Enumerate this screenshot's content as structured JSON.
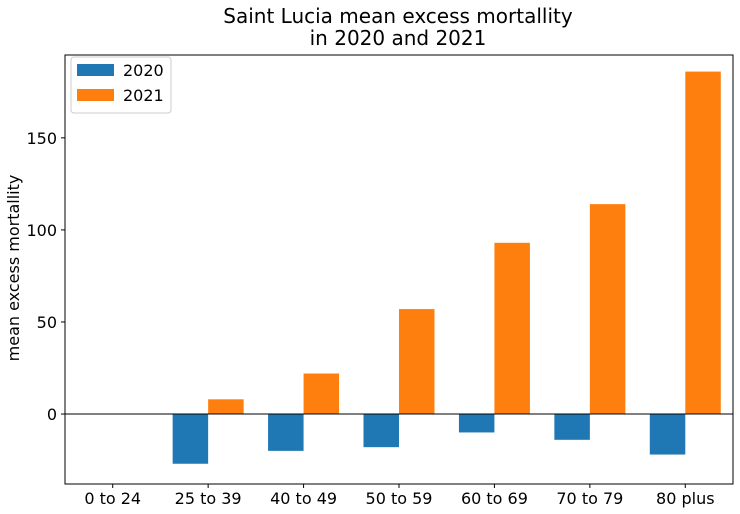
{
  "chart_data": {
    "type": "bar",
    "title_lines": [
      "Saint Lucia mean excess mortallity",
      "in 2020 and 2021"
    ],
    "xlabel": "",
    "ylabel": "mean excess mortallity",
    "categories": [
      "0 to 24",
      "25 to 39",
      "40 to 49",
      "50 to 59",
      "60 to 69",
      "70 to 79",
      "80 plus"
    ],
    "series": [
      {
        "name": "2020",
        "color": "#1f77b4",
        "values": [
          0,
          -27,
          -20,
          -18,
          -10,
          -14,
          -22
        ]
      },
      {
        "name": "2021",
        "color": "#ff7f0e",
        "values": [
          0,
          8,
          22,
          57,
          93,
          114,
          186
        ]
      }
    ],
    "ylim": [
      -38,
      195
    ],
    "yticks": [
      0,
      50,
      100,
      150
    ],
    "zero_line": true,
    "grid": false,
    "legend_position": "top-left"
  }
}
